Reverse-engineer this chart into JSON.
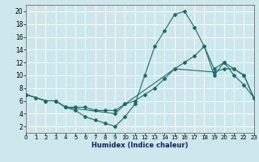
{
  "xlabel": "Humidex (Indice chaleur)",
  "background_color": "#cde8ec",
  "grid_color": "#ffffff",
  "line_color": "#1a6e6a",
  "xlim": [
    0,
    23
  ],
  "ylim": [
    1,
    21
  ],
  "yticks": [
    2,
    4,
    6,
    8,
    10,
    12,
    14,
    16,
    18,
    20
  ],
  "xticks": [
    0,
    1,
    2,
    3,
    4,
    5,
    6,
    7,
    8,
    9,
    10,
    11,
    12,
    13,
    14,
    15,
    16,
    17,
    18,
    19,
    20,
    21,
    22,
    23
  ],
  "line1_x": [
    0,
    1,
    2,
    3,
    4,
    5,
    6,
    7,
    8,
    9,
    10,
    11,
    12,
    13,
    14,
    15,
    16,
    17,
    18,
    19,
    20,
    21,
    22,
    23
  ],
  "line1_y": [
    7,
    6.5,
    6,
    6,
    5,
    4.5,
    3.5,
    3,
    2.5,
    2,
    3.5,
    5.5,
    10,
    14.5,
    17,
    19.5,
    20,
    17.5,
    14.5,
    10,
    12,
    10,
    8.5,
    6.5
  ],
  "line2_x": [
    0,
    2,
    3,
    4,
    5,
    6,
    7,
    8,
    9,
    10,
    11,
    12,
    13,
    14,
    15,
    16,
    17,
    18,
    19,
    20,
    21,
    22,
    23
  ],
  "line2_y": [
    7,
    6,
    6,
    5,
    5,
    5,
    4.5,
    4.5,
    4.5,
    5.5,
    6,
    7,
    8,
    9.5,
    11,
    12,
    13,
    14.5,
    11,
    12,
    11,
    10,
    6.5
  ],
  "line3_x": [
    0,
    2,
    3,
    4,
    9,
    10,
    15,
    19,
    20,
    21,
    22,
    23
  ],
  "line3_y": [
    7,
    6,
    6,
    5,
    4,
    5.5,
    11,
    10.5,
    11,
    11,
    10,
    6.5
  ],
  "xlabel_fontsize": 6,
  "tick_fontsize": 5,
  "marker_size": 2.0,
  "linewidth": 0.8
}
